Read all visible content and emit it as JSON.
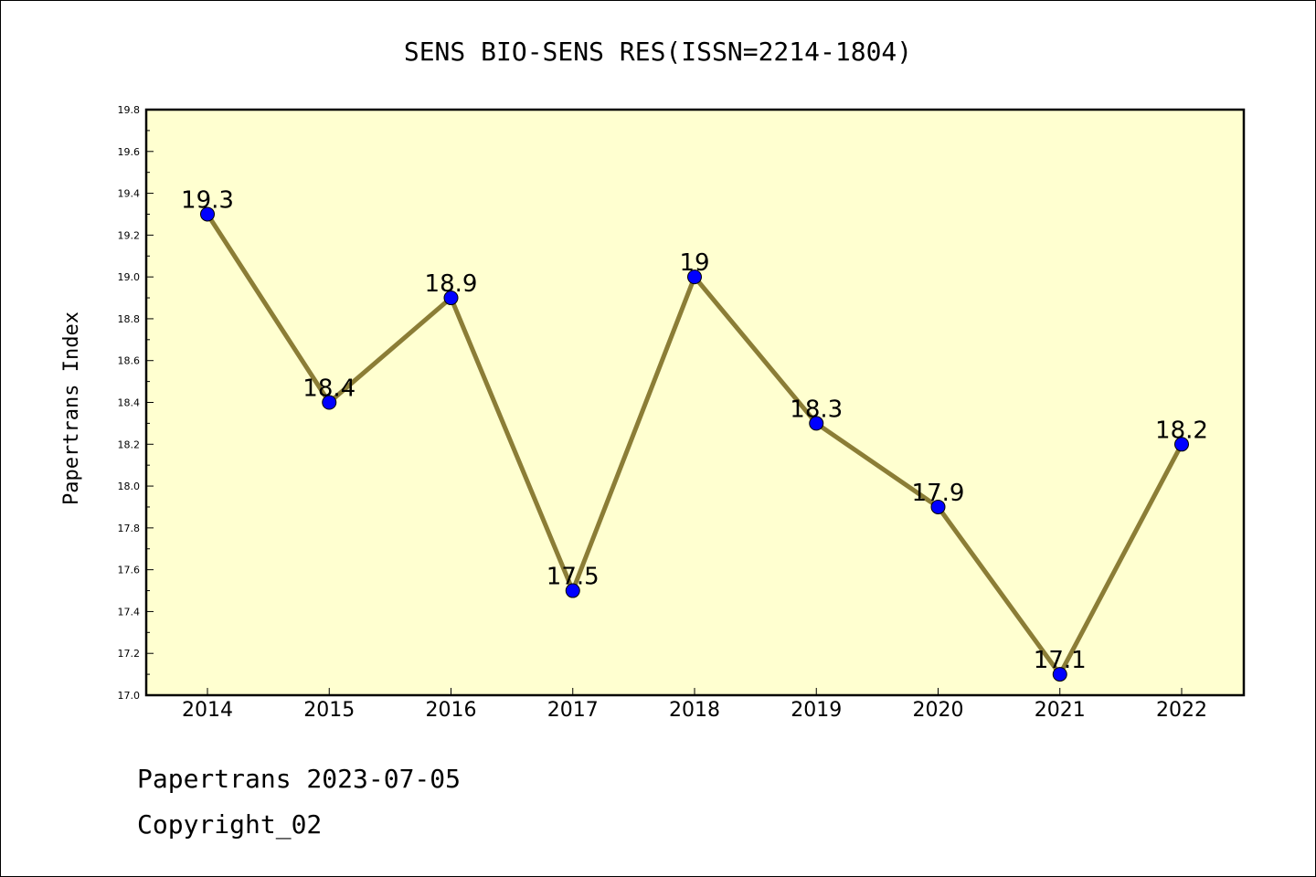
{
  "colors": {
    "plot_bg": "#ffffd0",
    "line": "#8b7d36",
    "marker": "#0000ff",
    "axes": "#000000"
  },
  "footer": {
    "date_line": "Papertrans 2023-07-05",
    "copyright": "Copyright_02"
  },
  "chart_data": {
    "type": "line",
    "title": "SENS BIO-SENS RES(ISSN=2214-1804)",
    "xlabel": "",
    "ylabel": "Papertrans Index",
    "categories": [
      "2014",
      "2015",
      "2016",
      "2017",
      "2018",
      "2019",
      "2020",
      "2021",
      "2022"
    ],
    "series": [
      {
        "values": [
          19.3,
          18.4,
          18.9,
          17.5,
          19.0,
          18.3,
          17.9,
          17.1,
          18.2
        ],
        "data_labels": [
          "19.3",
          "18.4",
          "18.9",
          "17.5",
          "19",
          "18.3",
          "17.9",
          "17.1",
          "18.2"
        ]
      }
    ],
    "ylim": [
      17.0,
      19.8
    ],
    "yticks": [
      "17.0",
      "17.2",
      "17.4",
      "17.6",
      "17.8",
      "18.0",
      "18.2",
      "18.4",
      "18.6",
      "18.8",
      "19.0",
      "19.2",
      "19.4",
      "19.6",
      "19.8"
    ],
    "grid": false,
    "legend": "none"
  }
}
